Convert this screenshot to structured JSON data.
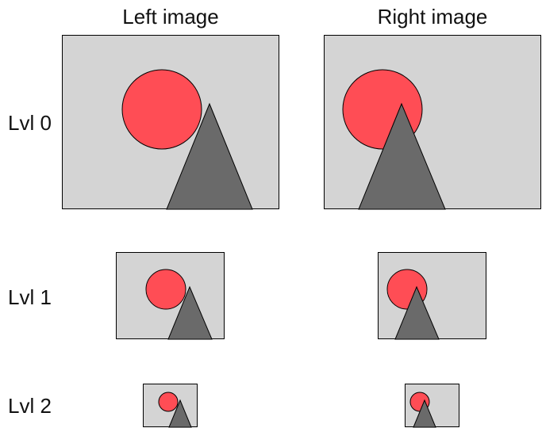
{
  "headers": {
    "left": "Left image",
    "right": "Right image"
  },
  "rows": [
    {
      "label": "Lvl 0"
    },
    {
      "label": "Lvl 1"
    },
    {
      "label": "Lvl 2"
    }
  ],
  "colors": {
    "background": "#d4d4d4",
    "border": "#000000",
    "circle": "#ff4d55",
    "triangle": "#6a6a6a"
  }
}
